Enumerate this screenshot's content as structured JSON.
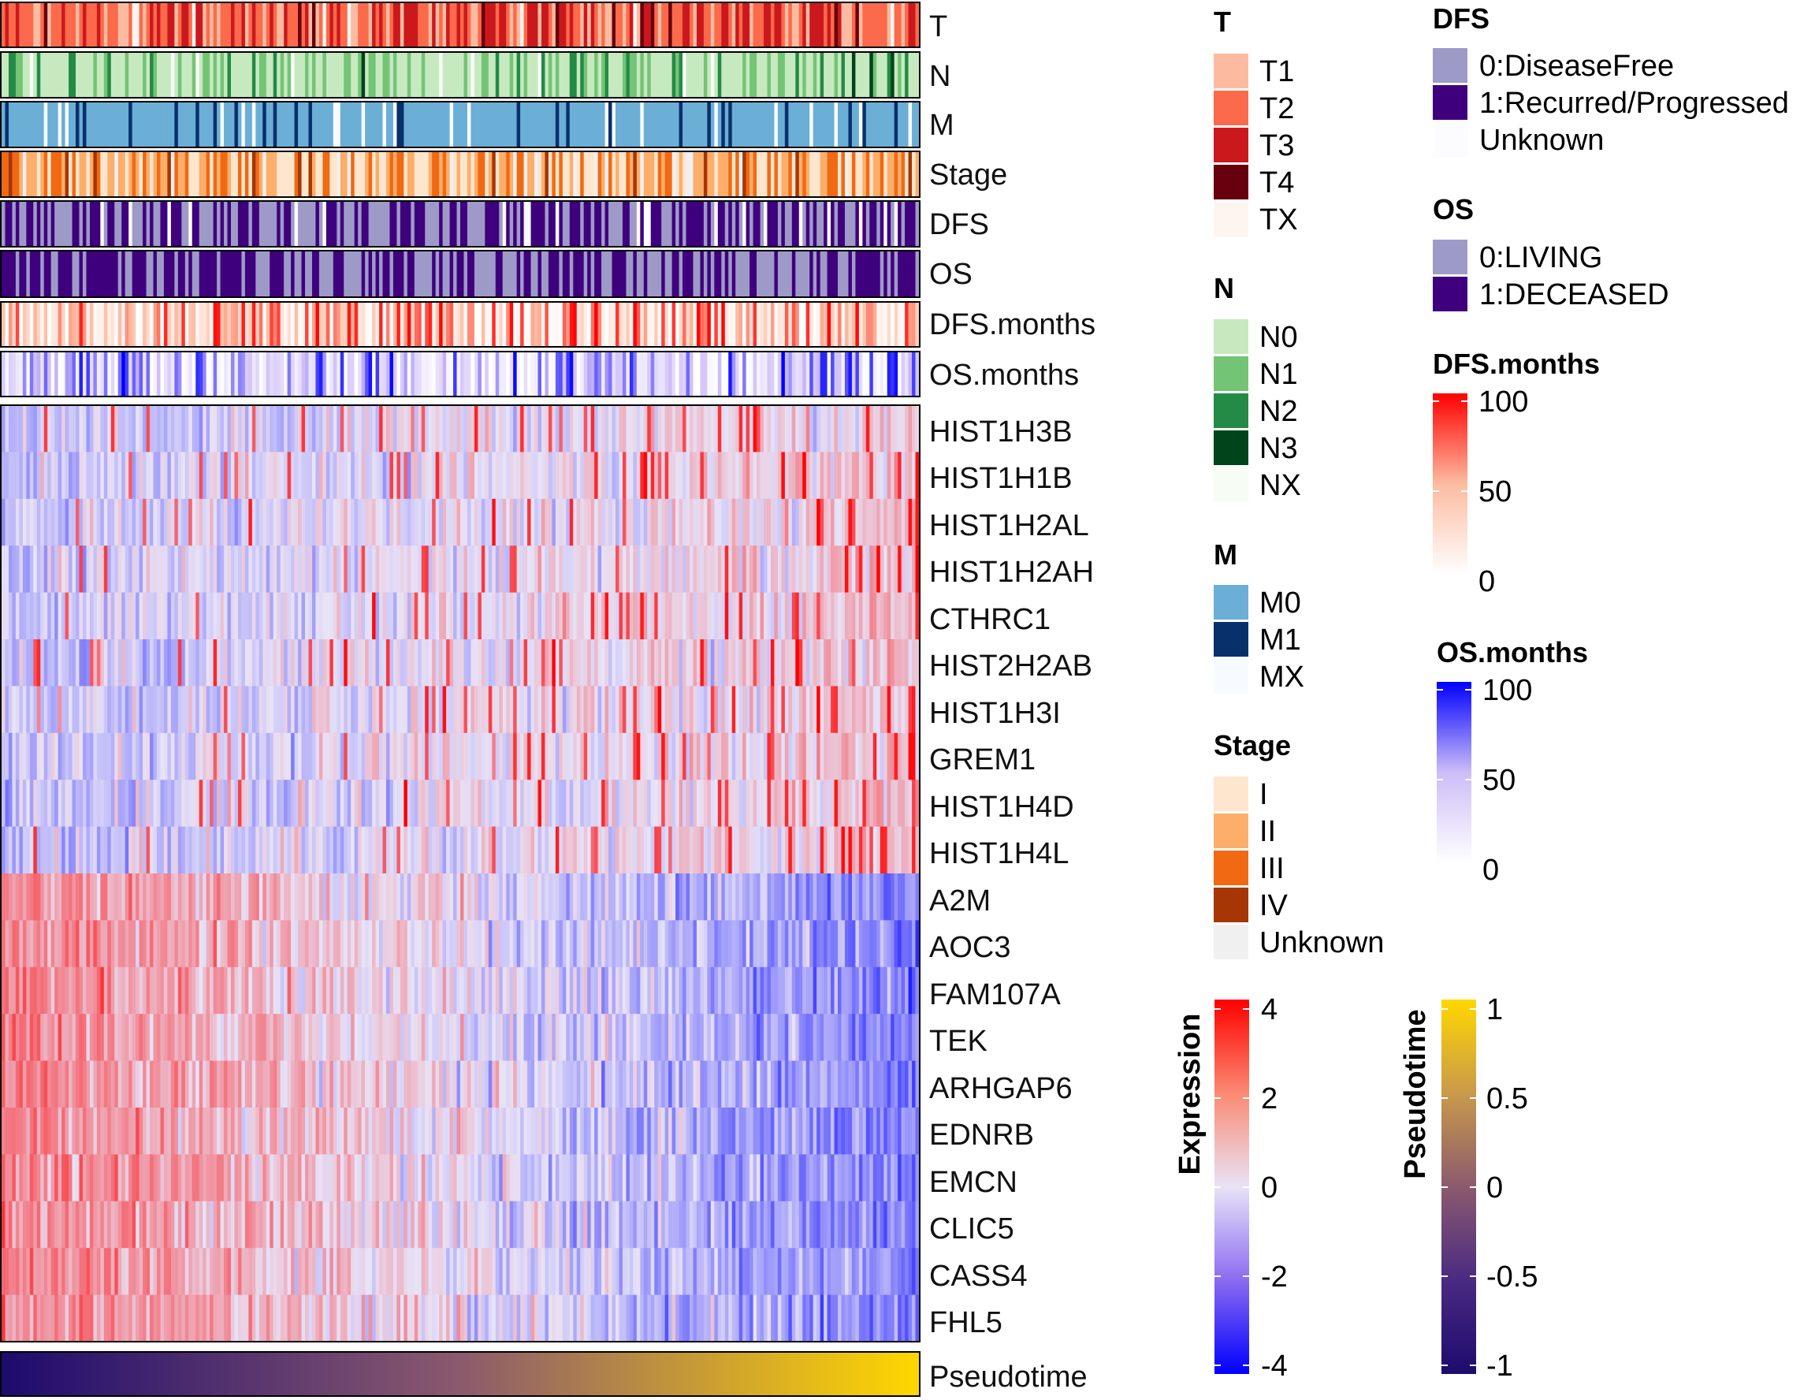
{
  "chart_data": {
    "type": "heatmap",
    "title": "",
    "n_samples": 260,
    "annotation_tracks": [
      {
        "name": "T",
        "kind": "categorical",
        "levels": [
          "T1",
          "T2",
          "T3",
          "T4",
          "TX"
        ],
        "colors": [
          "#fcbba1",
          "#fb6a4a",
          "#cb181d",
          "#67000d",
          "#fff5f0"
        ]
      },
      {
        "name": "N",
        "kind": "categorical",
        "levels": [
          "N0",
          "N1",
          "N2",
          "N3",
          "NX"
        ],
        "colors": [
          "#c7e9c0",
          "#74c476",
          "#238b45",
          "#00441b",
          "#f7fcf5"
        ]
      },
      {
        "name": "M",
        "kind": "categorical",
        "levels": [
          "M0",
          "M1",
          "MX"
        ],
        "colors": [
          "#6baed6",
          "#08306b",
          "#f7fbff"
        ]
      },
      {
        "name": "Stage",
        "kind": "categorical",
        "levels": [
          "I",
          "II",
          "III",
          "IV",
          "Unknown"
        ],
        "colors": [
          "#fee6ce",
          "#fdae6b",
          "#f16913",
          "#a63603",
          "#f0f0f0"
        ]
      },
      {
        "name": "DFS",
        "kind": "categorical",
        "levels": [
          "0:DiseaseFree",
          "1:Recurred/Progressed",
          "Unknown"
        ],
        "colors": [
          "#9e9ac8",
          "#3f007d",
          "#fcfbfd"
        ]
      },
      {
        "name": "OS",
        "kind": "categorical",
        "levels": [
          "0:LIVING",
          "1:DECEASED"
        ],
        "colors": [
          "#9e9ac8",
          "#3f007d"
        ]
      },
      {
        "name": "DFS.months",
        "kind": "continuous",
        "range": [
          0,
          100
        ],
        "ticks": [
          "100",
          "50",
          "0"
        ],
        "colors": [
          "#ffffff",
          "#fcbba1",
          "#ff0000"
        ]
      },
      {
        "name": "OS.months",
        "kind": "continuous",
        "range": [
          0,
          100
        ],
        "ticks": [
          "100",
          "50",
          "0"
        ],
        "colors": [
          "#ffffff",
          "#cdbdf7",
          "#0000ff"
        ]
      }
    ],
    "rows": [
      "HIST1H3B",
      "HIST1H1B",
      "HIST1H2AL",
      "HIST1H2AH",
      "CTHRC1",
      "HIST2H2AB",
      "HIST1H3I",
      "GREM1",
      "HIST1H4D",
      "HIST1H4L",
      "A2M",
      "AOC3",
      "FAM107A",
      "TEK",
      "ARHGAP6",
      "EDNRB",
      "EMCN",
      "CLIC5",
      "CASS4",
      "FHL5"
    ],
    "row_trend": [
      1,
      1,
      1,
      1,
      1,
      1,
      1,
      1,
      1,
      1,
      -1,
      -1,
      -1,
      -1,
      -1,
      -1,
      -1,
      -1,
      -1,
      -1
    ],
    "expression_scale": {
      "label": "Expression",
      "range": [
        -4,
        4
      ],
      "ticks": [
        "4",
        "2",
        "0",
        "-2",
        "-4"
      ],
      "colors": [
        "#0000ff",
        "#e8e3f7",
        "#ff0000"
      ]
    },
    "pseudotime": {
      "label": "Pseudotime",
      "range": [
        -1,
        1
      ],
      "ticks": [
        "1",
        "0.5",
        "0",
        "-0.5",
        "-1"
      ],
      "colors": [
        "#1d0b6e",
        "#8b5a6e",
        "#ffd700"
      ]
    }
  },
  "legends": {
    "T": {
      "title": "T",
      "items": [
        "T1",
        "T2",
        "T3",
        "T4",
        "TX"
      ]
    },
    "N": {
      "title": "N",
      "items": [
        "N0",
        "N1",
        "N2",
        "N3",
        "NX"
      ]
    },
    "M": {
      "title": "M",
      "items": [
        "M0",
        "M1",
        "MX"
      ]
    },
    "Stage": {
      "title": "Stage",
      "items": [
        "I",
        "II",
        "III",
        "IV",
        "Unknown"
      ]
    },
    "DFS": {
      "title": "DFS",
      "items": [
        "0:DiseaseFree",
        "1:Recurred/Progressed",
        "Unknown"
      ]
    },
    "OS": {
      "title": "OS",
      "items": [
        "0:LIVING",
        "1:DECEASED"
      ]
    },
    "DFSm": {
      "title": "DFS.months",
      "ticks": [
        "100",
        "50",
        "0"
      ]
    },
    "OSm": {
      "title": "OS.months",
      "ticks": [
        "100",
        "50",
        "0"
      ]
    },
    "Expression": {
      "title": "Expression",
      "ticks": [
        "4",
        "2",
        "0",
        "-2",
        "-4"
      ]
    },
    "Pseudotime": {
      "title": "Pseudotime",
      "ticks": [
        "1",
        "0.5",
        "0",
        "-0.5",
        "-1"
      ]
    }
  },
  "labels": {
    "track_T": "T",
    "track_N": "N",
    "track_M": "M",
    "track_Stage": "Stage",
    "track_DFS": "DFS",
    "track_OS": "OS",
    "track_DFSm": "DFS.months",
    "track_OSm": "OS.months",
    "bottom": "Pseudotime"
  }
}
